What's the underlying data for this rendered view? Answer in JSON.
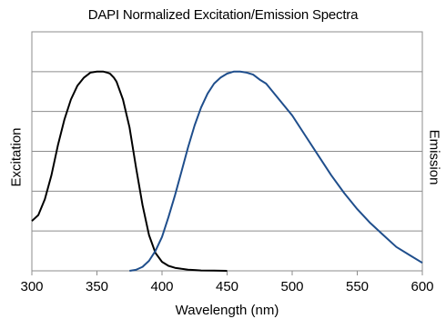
{
  "chart_data": {
    "type": "line",
    "title": "DAPI Normalized Excitation/Emission Spectra",
    "xlabel": "Wavelength (nm)",
    "ylabel_left": "Excitation",
    "ylabel_right": "Emission",
    "xlim": [
      300,
      600
    ],
    "ylim": [
      0,
      1.2
    ],
    "x_ticks": [
      300,
      350,
      400,
      450,
      500,
      550,
      600
    ],
    "y_gridlines": [
      0,
      0.2,
      0.4,
      0.6,
      0.8,
      1.0,
      1.2
    ],
    "y_tick_labels_shown": false,
    "grid": "horizontal",
    "legend": "none",
    "series": [
      {
        "name": "Excitation",
        "color": "#000000",
        "x": [
          300,
          305,
          310,
          315,
          320,
          325,
          330,
          335,
          340,
          345,
          350,
          355,
          358,
          360,
          363,
          365,
          370,
          375,
          380,
          385,
          390,
          395,
          400,
          405,
          410,
          415,
          420,
          425,
          430,
          440,
          450
        ],
        "y": [
          0.25,
          0.28,
          0.36,
          0.48,
          0.63,
          0.76,
          0.86,
          0.93,
          0.97,
          0.995,
          1.0,
          1.0,
          0.995,
          0.99,
          0.97,
          0.95,
          0.86,
          0.72,
          0.52,
          0.33,
          0.18,
          0.09,
          0.045,
          0.025,
          0.015,
          0.01,
          0.006,
          0.004,
          0.002,
          0.001,
          0.0
        ]
      },
      {
        "name": "Emission",
        "color": "#1f4e8c",
        "x": [
          375,
          380,
          385,
          390,
          395,
          400,
          405,
          410,
          415,
          420,
          425,
          430,
          435,
          440,
          445,
          450,
          455,
          460,
          465,
          470,
          475,
          480,
          490,
          500,
          510,
          520,
          530,
          540,
          550,
          560,
          570,
          580,
          590,
          600
        ],
        "y": [
          0.0,
          0.005,
          0.02,
          0.05,
          0.1,
          0.17,
          0.27,
          0.38,
          0.5,
          0.62,
          0.73,
          0.82,
          0.89,
          0.94,
          0.97,
          0.99,
          1.0,
          1.0,
          0.995,
          0.985,
          0.96,
          0.94,
          0.86,
          0.78,
          0.68,
          0.58,
          0.48,
          0.39,
          0.31,
          0.24,
          0.18,
          0.12,
          0.08,
          0.04
        ]
      }
    ]
  }
}
